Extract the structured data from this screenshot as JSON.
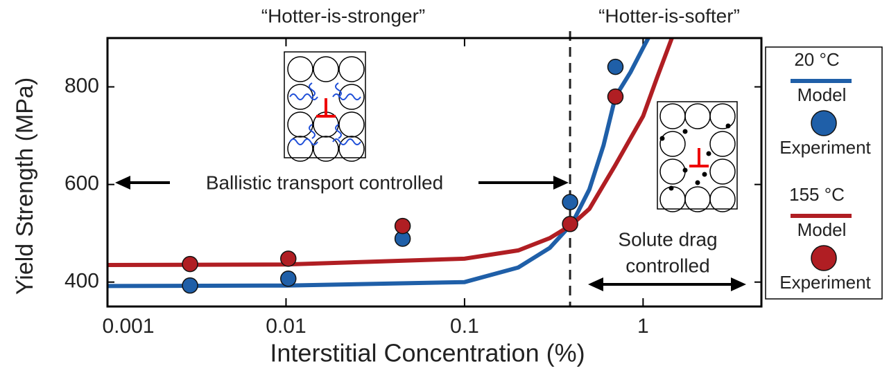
{
  "chart_data": {
    "type": "line",
    "xlabel": "Interstitial Concentration (%)",
    "ylabel": "Yield Strength (MPa)",
    "xscale": "log",
    "xlim": [
      0.001,
      4.6
    ],
    "ylim": [
      350,
      900
    ],
    "xticks": [
      0.001,
      0.01,
      0.1,
      1
    ],
    "yticks": [
      400,
      600,
      800
    ],
    "vline": 0.39,
    "annotations": [
      "“Hotter-is-stronger”",
      "“Hotter-is-softer”",
      "Ballistic transport controlled",
      "Solute drag",
      "controlled"
    ],
    "groups": [
      {
        "name": "20 °C",
        "color": "#1f5fa8",
        "model": {
          "name": "Model",
          "x": [
            0.001,
            0.01,
            0.1,
            0.2,
            0.3,
            0.4,
            0.5,
            0.6,
            0.7,
            0.85,
            1.0,
            1.07
          ],
          "values": [
            392,
            393,
            400,
            430,
            470,
            520,
            590,
            680,
            780,
            830,
            880,
            900
          ]
        },
        "experiment": {
          "name": "Experiment",
          "x": [
            0.0029,
            0.0103,
            0.045,
            0.39,
            0.7
          ],
          "values": [
            393,
            407,
            489,
            564,
            841
          ]
        }
      },
      {
        "name": "155 °C",
        "color": "#b01e23",
        "model": {
          "name": "Model",
          "x": [
            0.001,
            0.01,
            0.1,
            0.2,
            0.3,
            0.4,
            0.5,
            0.7,
            1.0,
            1.2,
            1.45
          ],
          "values": [
            435,
            436,
            448,
            465,
            490,
            518,
            550,
            640,
            740,
            820,
            900
          ]
        },
        "experiment": {
          "name": "Experiment",
          "x": [
            0.0029,
            0.0103,
            0.045,
            0.39,
            0.7
          ],
          "values": [
            437,
            448,
            515,
            519,
            780
          ]
        }
      }
    ]
  }
}
